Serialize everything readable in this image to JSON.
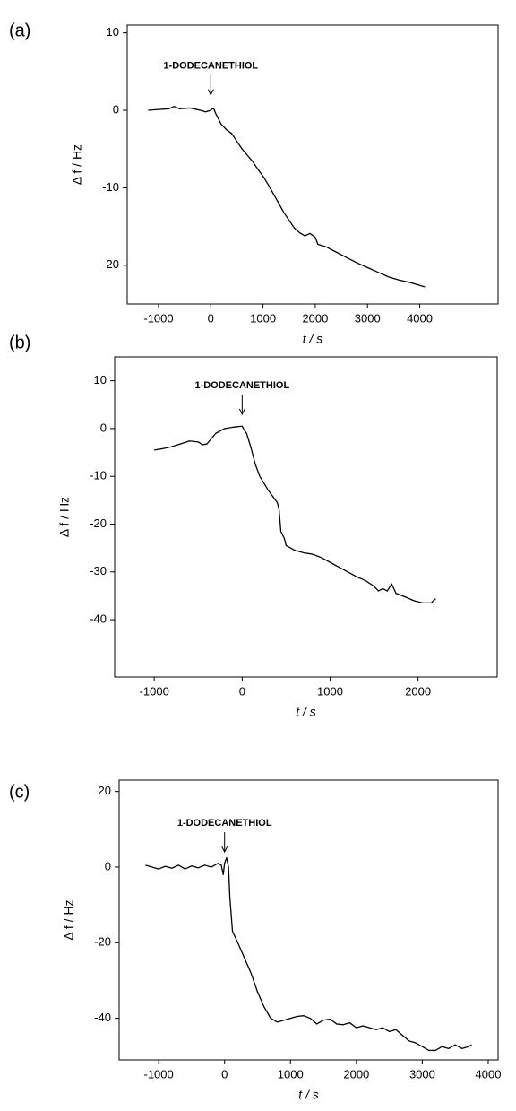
{
  "chart_data": [
    {
      "type": "line",
      "label": "(a)",
      "x_label": "t / s",
      "y_label": "Δ f / Hz",
      "color": "#000000",
      "annotation": {
        "text": "1-DODECANETHIOL",
        "x": 0,
        "y": 2
      },
      "xlim": [
        -1600,
        5500
      ],
      "ylim": [
        -25,
        11
      ],
      "xticks": [
        -1000,
        0,
        1000,
        2000,
        3000,
        4000
      ],
      "yticks": [
        10,
        0,
        -10,
        -20
      ],
      "x": [
        -1200,
        -1000,
        -800,
        -700,
        -600,
        -400,
        -200,
        -100,
        0,
        50,
        100,
        200,
        300,
        400,
        500,
        600,
        700,
        800,
        900,
        1000,
        1100,
        1200,
        1300,
        1400,
        1500,
        1600,
        1700,
        1800,
        1900,
        2000,
        2050,
        2200,
        2400,
        2600,
        2800,
        3000,
        3200,
        3400,
        3600,
        3800,
        4000,
        4100
      ],
      "values": [
        0,
        0.1,
        0.2,
        0.5,
        0.2,
        0.3,
        0,
        -0.2,
        0,
        0.3,
        -0.5,
        -1.8,
        -2.5,
        -3,
        -4,
        -5,
        -5.8,
        -6.6,
        -7.6,
        -8.5,
        -9.6,
        -10.8,
        -12,
        -13.2,
        -14.2,
        -15.2,
        -15.8,
        -16.2,
        -15.9,
        -16.4,
        -17.3,
        -17.6,
        -18.3,
        -19,
        -19.7,
        -20.3,
        -20.9,
        -21.5,
        -21.9,
        -22.2,
        -22.6,
        -22.8
      ]
    },
    {
      "type": "line",
      "label": "(b)",
      "x_label": "t / s",
      "y_label": "Δ f / Hz",
      "color": "#000000",
      "annotation": {
        "text": "1-DODECANETHIOL",
        "x": 0,
        "y": 3
      },
      "xlim": [
        -1450,
        2900
      ],
      "ylim": [
        -52,
        15
      ],
      "xticks": [
        -1000,
        0,
        1000,
        2000
      ],
      "yticks": [
        10,
        0,
        -10,
        -20,
        -30,
        -40
      ],
      "x": [
        -1000,
        -900,
        -800,
        -700,
        -600,
        -500,
        -450,
        -400,
        -300,
        -200,
        -100,
        0,
        30,
        50,
        100,
        150,
        200,
        300,
        400,
        420,
        440,
        480,
        500,
        600,
        700,
        800,
        900,
        1000,
        1100,
        1200,
        1300,
        1400,
        1500,
        1550,
        1600,
        1650,
        1700,
        1750,
        1850,
        1950,
        2050,
        2150,
        2200
      ],
      "values": [
        -4.5,
        -4.2,
        -3.8,
        -3.2,
        -2.6,
        -2.8,
        -3.4,
        -3.2,
        -1,
        0,
        0.3,
        0.5,
        -0.5,
        -1,
        -4,
        -7.5,
        -10,
        -13,
        -15.5,
        -17,
        -21.5,
        -23,
        -24.5,
        -25.5,
        -26,
        -26.3,
        -27,
        -28,
        -29,
        -30,
        -31,
        -31.8,
        -33,
        -34,
        -33.5,
        -34,
        -32.5,
        -34.5,
        -35.2,
        -36,
        -36.5,
        -36.5,
        -35.6
      ]
    },
    {
      "type": "line",
      "label": "(c)",
      "x_label": "t / s",
      "y_label": "Δ f / Hz",
      "color": "#000000",
      "annotation": {
        "text": "1-DODECANETHIOL",
        "x": 0,
        "y": 4
      },
      "xlim": [
        -1600,
        4150
      ],
      "ylim": [
        -51,
        23
      ],
      "xticks": [
        -1000,
        0,
        1000,
        2000,
        3000,
        4000
      ],
      "yticks": [
        20,
        0,
        -20,
        -40
      ],
      "x": [
        -1200,
        -1100,
        -1000,
        -900,
        -800,
        -700,
        -600,
        -500,
        -400,
        -300,
        -200,
        -100,
        -50,
        -20,
        0,
        30,
        60,
        80,
        120,
        200,
        300,
        400,
        500,
        600,
        700,
        800,
        900,
        1000,
        1100,
        1200,
        1300,
        1400,
        1500,
        1600,
        1700,
        1800,
        1900,
        2000,
        2100,
        2200,
        2300,
        2400,
        2500,
        2600,
        2700,
        2800,
        2900,
        3000,
        3100,
        3200,
        3300,
        3400,
        3500,
        3600,
        3700,
        3750
      ],
      "values": [
        0.5,
        0,
        -0.5,
        0.2,
        -0.3,
        0.5,
        -0.5,
        0.3,
        -0.2,
        0.5,
        0,
        1,
        0.5,
        -2,
        1,
        2.5,
        0,
        -8,
        -17,
        -20,
        -24,
        -28,
        -33,
        -37,
        -40,
        -41,
        -40.5,
        -40,
        -39.5,
        -39.3,
        -40,
        -41.5,
        -40.5,
        -40.2,
        -41.5,
        -41.7,
        -41.2,
        -42.5,
        -42,
        -42.5,
        -43,
        -42.5,
        -43.5,
        -43,
        -44.5,
        -46,
        -46.5,
        -47.5,
        -48.5,
        -48.5,
        -47.5,
        -48,
        -47,
        -48,
        -47.5,
        -47
      ]
    }
  ]
}
